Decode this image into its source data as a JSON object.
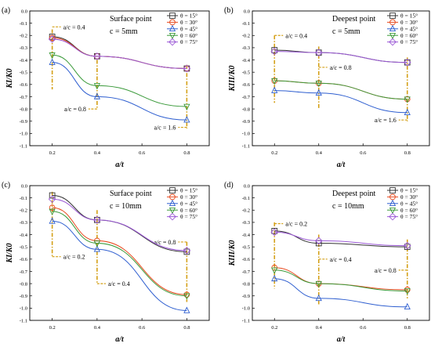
{
  "figure": {
    "series_names": [
      "θ = 15°",
      "θ = 30°",
      "θ = 45°",
      "θ = 60°",
      "θ = 75°"
    ],
    "series_colors": [
      "#333333",
      "#e8491d",
      "#2f5fd0",
      "#3a9a3a",
      "#9b59d6"
    ],
    "markers": [
      "square",
      "circle",
      "triangle-up",
      "triangle-down",
      "diamond"
    ]
  },
  "chart_data": [
    {
      "panel": "(a)",
      "type": "line",
      "title": "Surface point",
      "subtitle": "c = 5mm",
      "xlabel": "a/t",
      "ylabel": "KI/K0",
      "x": [
        0.2,
        0.4,
        0.8
      ],
      "xlim": [
        0.1,
        0.9
      ],
      "ylim": [
        -1.1,
        0
      ],
      "xticks": [
        "0.2",
        "0.4",
        "0.6",
        "0.8"
      ],
      "yticks": [
        "0.0",
        "-0.1",
        "-0.2",
        "-0.3",
        "-0.4",
        "-0.5",
        "-0.6",
        "-0.7",
        "-0.8",
        "-0.9",
        "-1.0",
        "-1.1"
      ],
      "series": [
        {
          "name": "θ = 15°",
          "values": [
            -0.21,
            -0.37,
            -0.47
          ]
        },
        {
          "name": "θ = 30°",
          "values": [
            -0.22,
            -0.37,
            -0.47
          ]
        },
        {
          "name": "θ = 45°",
          "values": [
            -0.42,
            -0.7,
            -0.89
          ]
        },
        {
          "name": "θ = 60°",
          "values": [
            -0.36,
            -0.61,
            -0.78
          ]
        },
        {
          "name": "θ = 75°",
          "values": [
            -0.23,
            -0.37,
            -0.47
          ]
        }
      ],
      "annotations": [
        {
          "text": "a/c = 0.4",
          "x": 0.2,
          "y1": -0.15,
          "y2": -0.64,
          "label_y": -0.13,
          "side": "right"
        },
        {
          "text": "a/c = 0.8",
          "x": 0.4,
          "y1": -0.4,
          "y2": -0.8,
          "label_y": -0.8,
          "side": "left"
        },
        {
          "text": "a/c = 1.6",
          "x": 0.8,
          "y1": -0.44,
          "y2": -0.96,
          "label_y": -0.95,
          "side": "left"
        }
      ]
    },
    {
      "panel": "(b)",
      "type": "line",
      "title": "Deepest point",
      "subtitle": "c = 5mm",
      "xlabel": "a/t",
      "ylabel": "KIII/K0",
      "x": [
        0.2,
        0.4,
        0.8
      ],
      "xlim": [
        0.1,
        0.9
      ],
      "ylim": [
        -1.1,
        0
      ],
      "xticks": [
        "0.2",
        "0.4",
        "0.6",
        "0.8"
      ],
      "yticks": [
        "0.0",
        "-0.1",
        "-0.2",
        "-0.3",
        "-0.4",
        "-0.5",
        "-0.6",
        "-0.7",
        "-0.8",
        "-0.9",
        "-1.0",
        "-1.1"
      ],
      "series": [
        {
          "name": "θ = 15°",
          "values": [
            -0.32,
            -0.34,
            -0.42
          ]
        },
        {
          "name": "θ = 30°",
          "values": [
            -0.57,
            -0.59,
            -0.72
          ]
        },
        {
          "name": "θ = 45°",
          "values": [
            -0.65,
            -0.67,
            -0.83
          ]
        },
        {
          "name": "θ = 60°",
          "values": [
            -0.57,
            -0.59,
            -0.72
          ]
        },
        {
          "name": "θ = 75°",
          "values": [
            -0.33,
            -0.34,
            -0.42
          ]
        }
      ],
      "annotations": [
        {
          "text": "a/c = 0.4",
          "x": 0.2,
          "y1": -0.2,
          "y2": -0.75,
          "label_y": -0.2,
          "side": "right"
        },
        {
          "text": "a/c = 0.8",
          "x": 0.4,
          "y1": -0.29,
          "y2": -0.8,
          "label_y": -0.46,
          "side": "right"
        },
        {
          "text": "a/c = 1.6",
          "x": 0.8,
          "y1": -0.38,
          "y2": -0.9,
          "label_y": -0.89,
          "side": "left"
        }
      ]
    },
    {
      "panel": "(c)",
      "type": "line",
      "title": "Surface point",
      "subtitle": "c = 10mm",
      "xlabel": "a/t",
      "ylabel": "KI/K0",
      "x": [
        0.2,
        0.4,
        0.8
      ],
      "xlim": [
        0.1,
        0.9
      ],
      "ylim": [
        -1.1,
        0
      ],
      "xticks": [
        "0.2",
        "0.4",
        "0.6",
        "0.8"
      ],
      "yticks": [
        "0.0",
        "-0.1",
        "-0.2",
        "-0.3",
        "-0.4",
        "-0.5",
        "-0.6",
        "-0.7",
        "-0.8",
        "-0.9",
        "-1.0",
        "-1.1"
      ],
      "series": [
        {
          "name": "θ = 15°",
          "values": [
            -0.08,
            -0.28,
            -0.54
          ]
        },
        {
          "name": "θ = 30°",
          "values": [
            -0.18,
            -0.45,
            -0.89
          ]
        },
        {
          "name": "θ = 45°",
          "values": [
            -0.29,
            -0.52,
            -1.02
          ]
        },
        {
          "name": "θ = 60°",
          "values": [
            -0.21,
            -0.47,
            -0.9
          ]
        },
        {
          "name": "θ = 75°",
          "values": [
            -0.11,
            -0.28,
            -0.53
          ]
        }
      ],
      "annotations": [
        {
          "text": "a/c = 0.2",
          "x": 0.2,
          "y1": -0.05,
          "y2": -0.58,
          "label_y": -0.58,
          "side": "right"
        },
        {
          "text": "a/c = 0.4",
          "x": 0.4,
          "y1": -0.2,
          "y2": -0.8,
          "label_y": -0.8,
          "side": "right"
        },
        {
          "text": "a/c = 0.8",
          "x": 0.8,
          "y1": -0.46,
          "y2": -0.95,
          "label_y": -0.46,
          "side": "left"
        }
      ]
    },
    {
      "panel": "(d)",
      "type": "line",
      "title": "Deepest point",
      "subtitle": "c = 10mm",
      "xlabel": "a/t",
      "ylabel": "KIII/K0",
      "x": [
        0.2,
        0.4,
        0.8
      ],
      "xlim": [
        0.1,
        0.9
      ],
      "ylim": [
        -1.1,
        0
      ],
      "xticks": [
        "0.2",
        "0.4",
        "0.6",
        "0.8"
      ],
      "yticks": [
        "0.0",
        "-0.1",
        "-0.2",
        "-0.3",
        "-0.4",
        "-0.5",
        "-0.6",
        "-0.7",
        "-0.8",
        "-0.9",
        "-1.0",
        "-1.1"
      ],
      "series": [
        {
          "name": "θ = 15°",
          "values": [
            -0.37,
            -0.47,
            -0.5
          ]
        },
        {
          "name": "θ = 30°",
          "values": [
            -0.67,
            -0.8,
            -0.85
          ]
        },
        {
          "name": "θ = 45°",
          "values": [
            -0.76,
            -0.92,
            -0.99
          ]
        },
        {
          "name": "θ = 60°",
          "values": [
            -0.69,
            -0.8,
            -0.86
          ]
        },
        {
          "name": "θ = 75°",
          "values": [
            -0.38,
            -0.45,
            -0.49
          ]
        }
      ],
      "annotations": [
        {
          "text": "a/c = 0.2",
          "x": 0.2,
          "y1": -0.3,
          "y2": -0.84,
          "label_y": -0.31,
          "side": "right"
        },
        {
          "text": "a/c = 0.4",
          "x": 0.4,
          "y1": -0.4,
          "y2": -0.98,
          "label_y": -0.6,
          "side": "right"
        },
        {
          "text": "a/c = 0.8",
          "x": 0.8,
          "y1": -0.44,
          "y2": -0.92,
          "label_y": -0.69,
          "side": "left"
        }
      ]
    }
  ]
}
